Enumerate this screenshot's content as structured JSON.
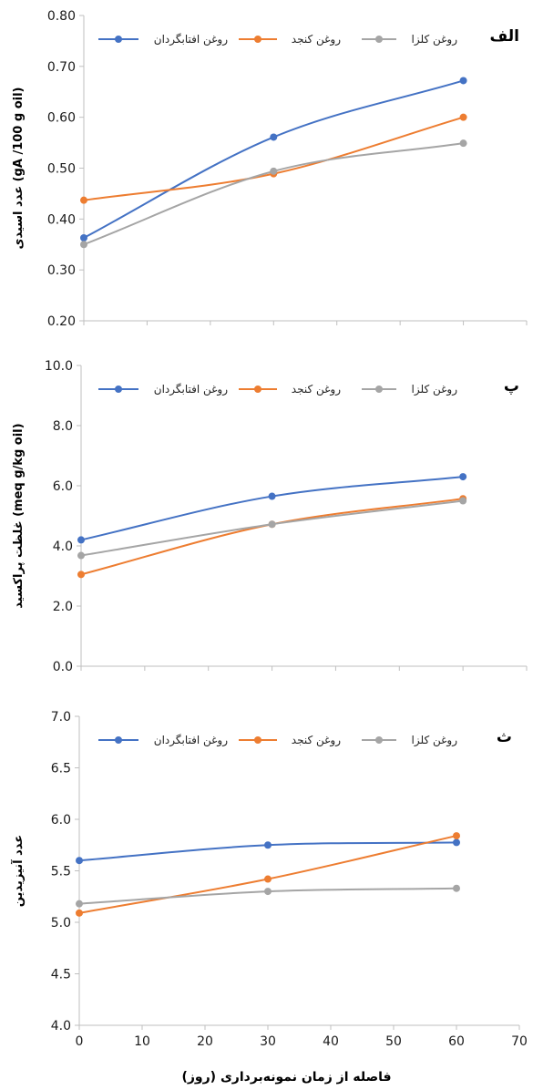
{
  "chart_data": [
    {
      "type": "line",
      "panel_label": "الف",
      "ylabel": "عدد اسیدی (gA /100 g oil)",
      "ylim": [
        0.2,
        0.8
      ],
      "yticks": [
        0.2,
        0.3,
        0.4,
        0.5,
        0.6,
        0.7,
        0.8
      ],
      "ytick_labels": [
        "0.20",
        "0.30",
        "0.40",
        "0.50",
        "0.60",
        "0.70",
        "0.80"
      ],
      "xlim": [
        0,
        70
      ],
      "xticks": [
        0,
        10,
        20,
        30,
        40,
        50,
        60,
        70
      ],
      "x": [
        0,
        30,
        60
      ],
      "legend_position": "top",
      "series": [
        {
          "name": "روغن افتابگردان",
          "color": "#4472C4",
          "values": [
            0.363,
            0.561,
            0.672
          ]
        },
        {
          "name": "روغن کنجد",
          "color": "#ED7D31",
          "values": [
            0.437,
            0.489,
            0.6
          ]
        },
        {
          "name": "روغن کلزا",
          "color": "#A5A5A5",
          "values": [
            0.35,
            0.494,
            0.549
          ]
        }
      ]
    },
    {
      "type": "line",
      "panel_label": "پ",
      "ylabel": "غلظت پراکسید (meq g/kg oil)",
      "ylim": [
        0,
        10
      ],
      "yticks": [
        0,
        2,
        4,
        6,
        8,
        10
      ],
      "ytick_labels": [
        "0.0",
        "2.0",
        "4.0",
        "6.0",
        "8.0",
        "10.0"
      ],
      "xlim": [
        0,
        70
      ],
      "xticks": [
        0,
        10,
        20,
        30,
        40,
        50,
        60,
        70
      ],
      "x": [
        0,
        30,
        60
      ],
      "legend_position": "top",
      "series": [
        {
          "name": "روغن افتابگردان",
          "color": "#4472C4",
          "values": [
            4.2,
            5.65,
            6.3
          ]
        },
        {
          "name": "روغن کنجد",
          "color": "#ED7D31",
          "values": [
            3.05,
            4.72,
            5.57
          ]
        },
        {
          "name": "روغن کلزا",
          "color": "#A5A5A5",
          "values": [
            3.68,
            4.72,
            5.5
          ]
        }
      ]
    },
    {
      "type": "line",
      "panel_label": "ث",
      "ylabel": "عدد آنیزیدین",
      "xlabel": "فاصله از زمان نمونه‌برداری (روز)",
      "ylim": [
        4.0,
        7.0
      ],
      "yticks": [
        4.0,
        4.5,
        5.0,
        5.5,
        6.0,
        6.5,
        7.0
      ],
      "ytick_labels": [
        "4.0",
        "4.5",
        "5.0",
        "5.5",
        "6.0",
        "6.5",
        "7.0"
      ],
      "xlim": [
        0,
        70
      ],
      "xticks": [
        0,
        10,
        20,
        30,
        40,
        50,
        60,
        70
      ],
      "xtick_labels": [
        "0",
        "10",
        "20",
        "30",
        "40",
        "50",
        "60",
        "70"
      ],
      "x": [
        0,
        30,
        60
      ],
      "legend_position": "top",
      "series": [
        {
          "name": "روغن افتابگردان",
          "color": "#4472C4",
          "values": [
            5.6,
            5.75,
            5.775
          ]
        },
        {
          "name": "روغن کنجد",
          "color": "#ED7D31",
          "values": [
            5.09,
            5.42,
            5.84
          ]
        },
        {
          "name": "روغن کلزا",
          "color": "#A5A5A5",
          "values": [
            5.18,
            5.3,
            5.33
          ]
        }
      ]
    }
  ]
}
